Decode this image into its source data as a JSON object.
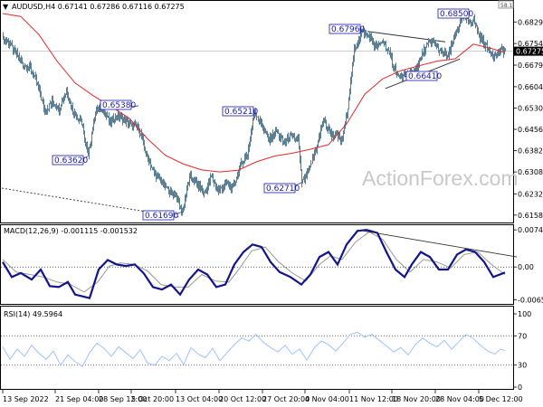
{
  "colors": {
    "candle": "#5c7f93",
    "ma": "#e8282b",
    "macd": "#14148c",
    "signal": "#9a9a9a",
    "rsi": "#9ec2ff",
    "annotation": "#1a1aa6",
    "grid": "#c8c8c8",
    "frame": "#000000"
  },
  "header": {
    "symbol_line": "AUDUSD,H4  0.67141 0.67286 0.67116 0.67275",
    "collapse_label": "58.1"
  },
  "watermark": "ActionForex.com",
  "price_panel": {
    "current_price": "0.67275",
    "ylim": [
      0.6145,
      0.6855
    ]
  },
  "macd_panel": {
    "title": "MACD(12,26,9) -0.001115 -0.001532",
    "ticks": [
      "0.007411",
      "0.00",
      "-0.006532"
    ]
  },
  "rsi_panel": {
    "title": "RSI(14) 49.5964",
    "ticks": [
      "100",
      "70",
      "30",
      "0"
    ]
  },
  "chart_data": [
    {
      "type": "candlestick",
      "name": "AUDUSD,H4",
      "ylim": [
        0.6145,
        0.6855
      ],
      "yticks": [
        "0.68290",
        "0.67540",
        "0.66790",
        "0.66040",
        "0.65300",
        "0.64560",
        "0.63820",
        "0.63080",
        "0.62320",
        "0.61580"
      ],
      "ytick_values": [
        0.6829,
        0.6754,
        0.6679,
        0.6604,
        0.653,
        0.6456,
        0.6382,
        0.6308,
        0.6232,
        0.6158
      ],
      "current_price": 0.67275,
      "anchors": [
        [
          0,
          0.677
        ],
        [
          6,
          0.676
        ],
        [
          14,
          0.672
        ],
        [
          22,
          0.668
        ],
        [
          30,
          0.667
        ],
        [
          38,
          0.661
        ],
        [
          46,
          0.652
        ],
        [
          54,
          0.655
        ],
        [
          62,
          0.653
        ],
        [
          70,
          0.659
        ],
        [
          78,
          0.651
        ],
        [
          86,
          0.649
        ],
        [
          94,
          0.6362
        ],
        [
          102,
          0.652
        ],
        [
          110,
          0.653
        ],
        [
          118,
          0.648
        ],
        [
          126,
          0.6505
        ],
        [
          134,
          0.649
        ],
        [
          142,
          0.647
        ],
        [
          150,
          0.646
        ],
        [
          158,
          0.637
        ],
        [
          166,
          0.631
        ],
        [
          174,
          0.628
        ],
        [
          182,
          0.6245
        ],
        [
          190,
          0.623
        ],
        [
          198,
          0.6169
        ],
        [
          206,
          0.629
        ],
        [
          214,
          0.627
        ],
        [
          222,
          0.623
        ],
        [
          230,
          0.629
        ],
        [
          238,
          0.624
        ],
        [
          246,
          0.627
        ],
        [
          254,
          0.625
        ],
        [
          262,
          0.633
        ],
        [
          270,
          0.637
        ],
        [
          278,
          0.6521
        ],
        [
          286,
          0.647
        ],
        [
          294,
          0.642
        ],
        [
          302,
          0.645
        ],
        [
          310,
          0.641
        ],
        [
          318,
          0.643
        ],
        [
          326,
          0.642
        ],
        [
          330,
          0.6271
        ],
        [
          338,
          0.631
        ],
        [
          346,
          0.639
        ],
        [
          354,
          0.649
        ],
        [
          362,
          0.644
        ],
        [
          370,
          0.643
        ],
        [
          374,
          0.641
        ],
        [
          380,
          0.651
        ],
        [
          388,
          0.673
        ],
        [
          396,
          0.6796
        ],
        [
          404,
          0.678
        ],
        [
          412,
          0.674
        ],
        [
          420,
          0.676
        ],
        [
          428,
          0.671
        ],
        [
          436,
          0.664
        ],
        [
          444,
          0.6641
        ],
        [
          452,
          0.665
        ],
        [
          460,
          0.669
        ],
        [
          468,
          0.675
        ],
        [
          476,
          0.676
        ],
        [
          484,
          0.672
        ],
        [
          492,
          0.671
        ],
        [
          500,
          0.679
        ],
        [
          508,
          0.685
        ],
        [
          514,
          0.683
        ],
        [
          520,
          0.684
        ],
        [
          526,
          0.678
        ],
        [
          532,
          0.675
        ],
        [
          538,
          0.673
        ],
        [
          544,
          0.671
        ],
        [
          550,
          0.673
        ],
        [
          555,
          0.67275
        ]
      ],
      "moving_average": [
        [
          0,
          0.6858
        ],
        [
          20,
          0.6848
        ],
        [
          40,
          0.6785
        ],
        [
          60,
          0.6693
        ],
        [
          80,
          0.6617
        ],
        [
          100,
          0.6573
        ],
        [
          120,
          0.6535
        ],
        [
          140,
          0.6494
        ],
        [
          160,
          0.6423
        ],
        [
          180,
          0.6365
        ],
        [
          200,
          0.6335
        ],
        [
          220,
          0.6315
        ],
        [
          240,
          0.6308
        ],
        [
          260,
          0.6314
        ],
        [
          280,
          0.6343
        ],
        [
          300,
          0.6363
        ],
        [
          320,
          0.6373
        ],
        [
          340,
          0.6387
        ],
        [
          360,
          0.6403
        ],
        [
          380,
          0.6475
        ],
        [
          400,
          0.6578
        ],
        [
          420,
          0.6632
        ],
        [
          440,
          0.666
        ],
        [
          460,
          0.6677
        ],
        [
          480,
          0.6693
        ],
        [
          500,
          0.6701
        ],
        [
          520,
          0.6752
        ],
        [
          540,
          0.6737
        ],
        [
          555,
          0.6723
        ]
      ],
      "annotations": [
        {
          "text": "0.63620",
          "value": 0.6362
        },
        {
          "text": "0.65380",
          "value": 0.6538
        },
        {
          "text": "0.61690",
          "value": 0.6169
        },
        {
          "text": "0.65210",
          "value": 0.6521
        },
        {
          "text": "0.62710",
          "value": 0.6271
        },
        {
          "text": "0.67960",
          "value": 0.6796
        },
        {
          "text": "0.66410",
          "value": 0.6641
        },
        {
          "text": "0.68500",
          "value": 0.685
        }
      ],
      "x_ticks": [
        "13 Sep 2022",
        "21 Sep 04:00",
        "28 Sep 12:00",
        "5 Oct 20:00",
        "13 Oct 04:00",
        "20 Oct 12:00",
        "27 Oct 20:00",
        "4 Nov 04:00",
        "11 Nov 12:00",
        "18 Nov 20:00",
        "28 Nov 04:00",
        "5 Dec 12:00"
      ],
      "grid": false
    },
    {
      "type": "line",
      "name": "MACD(12,26,9)",
      "ylim": [
        -0.007,
        0.0078
      ],
      "yticks": [
        "0.007411",
        "0.00",
        "-0.006532"
      ],
      "ytick_values": [
        0.007411,
        0,
        -0.006532
      ],
      "series": [
        {
          "name": "MACD",
          "points": [
            [
              0,
              0.001
            ],
            [
              10,
              -0.002
            ],
            [
              20,
              -0.0012
            ],
            [
              32,
              -0.0025
            ],
            [
              42,
              -0.0005
            ],
            [
              52,
              -0.0038
            ],
            [
              62,
              -0.004
            ],
            [
              72,
              -0.003
            ],
            [
              80,
              -0.0055
            ],
            [
              96,
              -0.0062
            ],
            [
              106,
              -0.0005
            ],
            [
              116,
              0.0014
            ],
            [
              126,
              0.0005
            ],
            [
              136,
              0.0002
            ],
            [
              146,
              0.0005
            ],
            [
              156,
              -0.0013
            ],
            [
              166,
              -0.004
            ],
            [
              176,
              -0.0045
            ],
            [
              186,
              -0.0035
            ],
            [
              196,
              -0.0055
            ],
            [
              206,
              -0.0025
            ],
            [
              216,
              -0.0005
            ],
            [
              226,
              -0.0015
            ],
            [
              236,
              -0.004
            ],
            [
              246,
              -0.0035
            ],
            [
              256,
              0.0005
            ],
            [
              266,
              0.003
            ],
            [
              276,
              0.0045
            ],
            [
              286,
              0.004
            ],
            [
              296,
              0.001
            ],
            [
              306,
              -0.001
            ],
            [
              318,
              -0.002
            ],
            [
              330,
              -0.0035
            ],
            [
              340,
              -0.0015
            ],
            [
              350,
              0.002
            ],
            [
              360,
              0.003
            ],
            [
              370,
              0.0005
            ],
            [
              380,
              0.0045
            ],
            [
              392,
              0.0072
            ],
            [
              402,
              0.0074
            ],
            [
              414,
              0.0068
            ],
            [
              424,
              0.003
            ],
            [
              434,
              -0.0005
            ],
            [
              444,
              -0.002
            ],
            [
              452,
              0.0005
            ],
            [
              462,
              0.003
            ],
            [
              472,
              0.002
            ],
            [
              482,
              -0.0005
            ],
            [
              492,
              -0.0005
            ],
            [
              502,
              0.0025
            ],
            [
              512,
              0.0035
            ],
            [
              522,
              0.003
            ],
            [
              532,
              0.001
            ],
            [
              542,
              -0.002
            ],
            [
              555,
              -0.0011
            ]
          ]
        },
        {
          "name": "Signal",
          "points": [
            [
              0,
              0.0015
            ],
            [
              15,
              -0.001
            ],
            [
              30,
              -0.0015
            ],
            [
              45,
              -0.002
            ],
            [
              60,
              -0.003
            ],
            [
              75,
              -0.0035
            ],
            [
              90,
              -0.005
            ],
            [
              105,
              -0.003
            ],
            [
              118,
              0.0002
            ],
            [
              130,
              0.0008
            ],
            [
              145,
              0.0005
            ],
            [
              160,
              -0.0008
            ],
            [
              175,
              -0.0035
            ],
            [
              190,
              -0.004
            ],
            [
              205,
              -0.004
            ],
            [
              220,
              -0.0015
            ],
            [
              235,
              -0.0028
            ],
            [
              250,
              -0.003
            ],
            [
              262,
              -0.0002
            ],
            [
              275,
              0.0032
            ],
            [
              290,
              0.004
            ],
            [
              305,
              0.001
            ],
            [
              320,
              -0.0012
            ],
            [
              335,
              -0.0028
            ],
            [
              350,
              0.0005
            ],
            [
              362,
              0.0022
            ],
            [
              375,
              0.0015
            ],
            [
              390,
              0.005
            ],
            [
              405,
              0.007
            ],
            [
              420,
              0.0055
            ],
            [
              435,
              0.0015
            ],
            [
              450,
              -0.001
            ],
            [
              465,
              0.0015
            ],
            [
              480,
              0.001
            ],
            [
              495,
              -0.0002
            ],
            [
              510,
              0.0025
            ],
            [
              525,
              0.003
            ],
            [
              540,
              0.0005
            ],
            [
              555,
              -0.0015
            ]
          ]
        }
      ],
      "trendline": [
        [
          392,
          0.0074
        ],
        [
          568,
          0.002
        ]
      ],
      "grid": false
    },
    {
      "type": "line",
      "name": "RSI(14)",
      "ylim": [
        0,
        100
      ],
      "yticks": [
        "100",
        "70",
        "30",
        "0"
      ],
      "ytick_values": [
        100,
        70,
        30,
        0
      ],
      "levels": [
        70,
        30
      ],
      "current": 49.5964,
      "series": [
        {
          "name": "RSI",
          "points": [
            [
              0,
              55
            ],
            [
              8,
              38
            ],
            [
              16,
              52
            ],
            [
              24,
              42
            ],
            [
              32,
              57
            ],
            [
              40,
              46
            ],
            [
              48,
              38
            ],
            [
              56,
              49
            ],
            [
              64,
              30
            ],
            [
              72,
              44
            ],
            [
              80,
              35
            ],
            [
              88,
              28
            ],
            [
              96,
              47
            ],
            [
              104,
              60
            ],
            [
              112,
              53
            ],
            [
              120,
              42
            ],
            [
              128,
              55
            ],
            [
              136,
              47
            ],
            [
              144,
              39
            ],
            [
              152,
              51
            ],
            [
              160,
              33
            ],
            [
              168,
              30
            ],
            [
              176,
              42
            ],
            [
              184,
              36
            ],
            [
              192,
              46
            ],
            [
              200,
              31
            ],
            [
              208,
              54
            ],
            [
              216,
              45
            ],
            [
              224,
              40
            ],
            [
              232,
              53
            ],
            [
              240,
              36
            ],
            [
              248,
              47
            ],
            [
              256,
              58
            ],
            [
              264,
              67
            ],
            [
              272,
              63
            ],
            [
              280,
              72
            ],
            [
              288,
              61
            ],
            [
              296,
              54
            ],
            [
              304,
              48
            ],
            [
              312,
              57
            ],
            [
              320,
              45
            ],
            [
              328,
              52
            ],
            [
              336,
              37
            ],
            [
              344,
              53
            ],
            [
              352,
              63
            ],
            [
              360,
              58
            ],
            [
              368,
              49
            ],
            [
              376,
              60
            ],
            [
              384,
              72
            ],
            [
              392,
              75
            ],
            [
              400,
              68
            ],
            [
              408,
              72
            ],
            [
              416,
              64
            ],
            [
              424,
              56
            ],
            [
              432,
              48
            ],
            [
              440,
              54
            ],
            [
              448,
              44
            ],
            [
              456,
              58
            ],
            [
              464,
              67
            ],
            [
              472,
              60
            ],
            [
              480,
              55
            ],
            [
              488,
              64
            ],
            [
              496,
              52
            ],
            [
              504,
              62
            ],
            [
              512,
              72
            ],
            [
              520,
              66
            ],
            [
              528,
              57
            ],
            [
              536,
              49
            ],
            [
              544,
              45
            ],
            [
              550,
              52
            ],
            [
              555,
              49.6
            ]
          ]
        }
      ],
      "grid": false
    }
  ]
}
